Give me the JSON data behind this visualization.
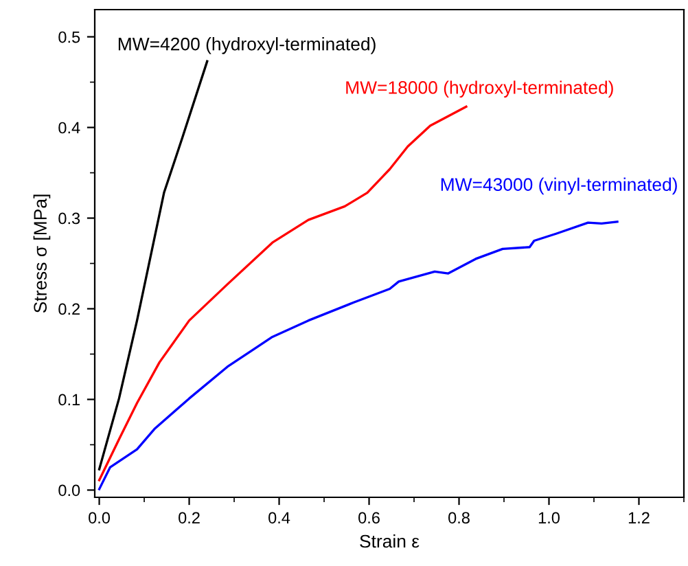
{
  "chart_data": {
    "type": "line",
    "xlabel": "Strain ε",
    "ylabel": "Stress σ [MPa]",
    "xlim": [
      -0.01,
      1.3
    ],
    "ylim": [
      -0.008,
      0.53
    ],
    "xticks": [
      {
        "value": 0,
        "label": "0.0"
      },
      0.2,
      0.4,
      0.6,
      0.8,
      {
        "value": 1,
        "label": "1.0"
      },
      1.2
    ],
    "yticks": [
      {
        "value": 0,
        "label": "0.0"
      },
      0.1,
      0.2,
      0.3,
      0.4,
      0.5
    ],
    "grid": false,
    "legend": false,
    "marker": "none",
    "line_style": "solid",
    "series": [
      {
        "name": "MW=4200 (hydroxyl-terminated)",
        "color": "#000000",
        "x": [
          0,
          0.044,
          0.084,
          0.144,
          0.185,
          0.24
        ],
        "values": [
          0.023,
          0.101,
          0.187,
          0.328,
          0.389,
          0.473
        ]
      },
      {
        "name": "MW=18000 (hydroxyl-terminated)",
        "color": "#ff0000",
        "x": [
          0,
          0.044,
          0.084,
          0.134,
          0.2,
          0.285,
          0.385,
          0.465,
          0.546,
          0.596,
          0.646,
          0.686,
          0.736,
          0.816
        ],
        "values": [
          0.011,
          0.056,
          0.096,
          0.141,
          0.187,
          0.227,
          0.273,
          0.298,
          0.313,
          0.328,
          0.354,
          0.379,
          0.402,
          0.423
        ]
      },
      {
        "name": "MW=43000 (vinyl-terminated)",
        "color": "#0000ff",
        "x": [
          0,
          0.024,
          0.084,
          0.124,
          0.2,
          0.285,
          0.385,
          0.465,
          0.566,
          0.646,
          0.666,
          0.746,
          0.776,
          0.837,
          0.897,
          0.957,
          0.967,
          1.017,
          1.087,
          1.117,
          1.152
        ],
        "values": [
          0.001,
          0.025,
          0.045,
          0.068,
          0.101,
          0.136,
          0.169,
          0.187,
          0.207,
          0.222,
          0.23,
          0.241,
          0.239,
          0.255,
          0.266,
          0.268,
          0.275,
          0.283,
          0.295,
          0.294,
          0.296
        ]
      }
    ]
  }
}
